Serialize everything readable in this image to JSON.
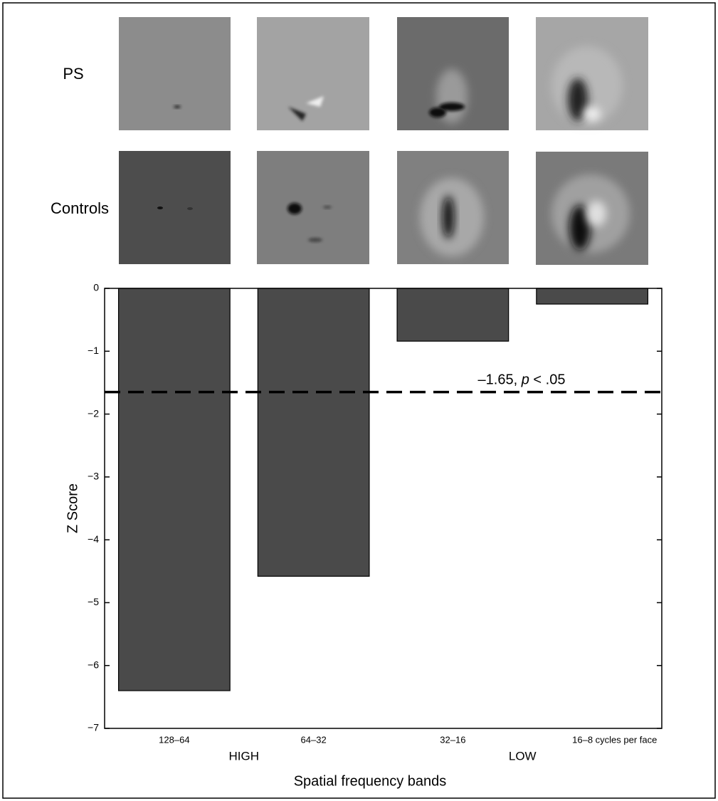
{
  "chart_data": {
    "type": "bar",
    "image_rows": [
      "PS",
      "Controls"
    ],
    "categories": [
      "128–64",
      "64–32",
      "32–16",
      "16–8 cycles per face"
    ],
    "values": [
      -6.4,
      -4.58,
      -0.84,
      -0.25
    ],
    "color": "#4a4a4a",
    "ylim": [
      -7,
      0
    ],
    "yticks": [
      {
        "value": 0,
        "label": "0"
      },
      {
        "value": -1,
        "label": "−1"
      },
      {
        "value": -2,
        "label": "−2"
      },
      {
        "value": -3,
        "label": "−3"
      },
      {
        "value": -4,
        "label": "−4"
      },
      {
        "value": -5,
        "label": "−5"
      },
      {
        "value": -6,
        "label": "−6"
      },
      {
        "value": -7,
        "label": "−7"
      }
    ],
    "ylabel": "Z Score",
    "xlabel": "Spatial frequency bands",
    "range_labels": [
      "HIGH",
      "LOW"
    ],
    "threshold": -1.65,
    "threshold_label": {
      "before": "–1.65, ",
      "italic": "p",
      "after": " < .05"
    }
  }
}
